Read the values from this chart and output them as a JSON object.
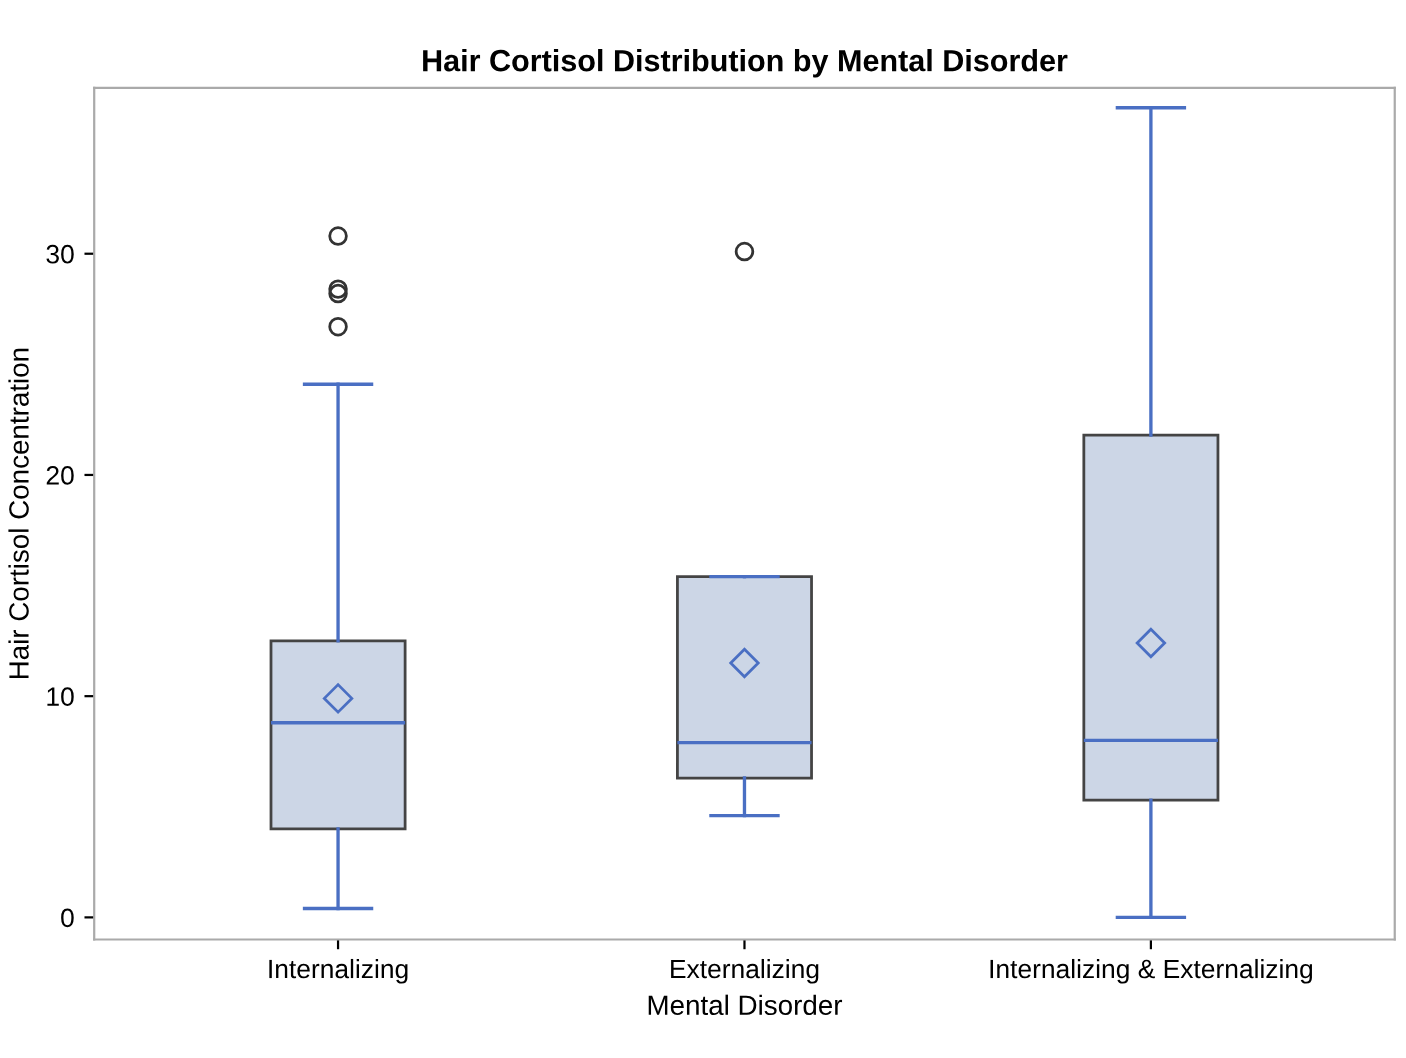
{
  "chart_data": {
    "type": "box",
    "title": "Hair Cortisol Distribution by Mental Disorder",
    "xlabel": "Mental Disorder",
    "ylabel": "Hair Cortisol Concentration",
    "categories": [
      "Internalizing",
      "Externalizing",
      "Internalizing & Externalizing"
    ],
    "series": [
      {
        "color": "#ccd6e6",
        "boxes": [
          {
            "low": 0.4,
            "q1": 4.0,
            "median": 8.8,
            "q3": 12.5,
            "high": 24.1,
            "mean": 9.9,
            "outliers": [
              30.8,
              28.4,
              28.2,
              26.7
            ]
          },
          {
            "low": 4.6,
            "q1": 6.3,
            "median": 7.9,
            "q3": 15.4,
            "high": 15.4,
            "mean": 11.5,
            "outliers": [
              30.1
            ]
          },
          {
            "low": 0.0,
            "q1": 5.3,
            "median": 8.0,
            "q3": 21.8,
            "high": 36.6,
            "mean": 12.4
          }
        ]
      }
    ],
    "ylim": [
      -1,
      37.5
    ],
    "yticks": [
      0,
      10,
      20,
      30
    ],
    "grid": false,
    "legend": false
  }
}
